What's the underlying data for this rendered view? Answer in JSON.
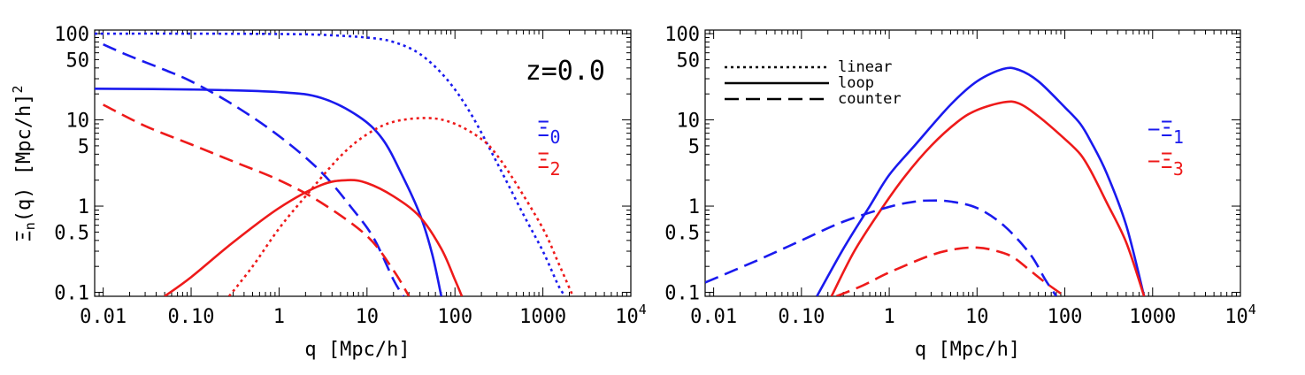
{
  "figure": {
    "ylabel": "Ξn(q) [Mpc/h]²",
    "ylabel_main": "Ξ",
    "ylabel_sub": "n",
    "ylabel_rest": "(q) [Mpc/h]",
    "ylabel_sup": "2"
  },
  "chart_data": [
    {
      "type": "line",
      "xlabel": "q  [Mpc/h]",
      "xscale": "log",
      "yscale": "log",
      "xlim": [
        0.008,
        10000
      ],
      "ylim": [
        0.09,
        110
      ],
      "xticks": [
        {
          "value": 0.01,
          "label": "0.01"
        },
        {
          "value": 0.1,
          "label": "0.10"
        },
        {
          "value": 1,
          "label": "1"
        },
        {
          "value": 10,
          "label": "10"
        },
        {
          "value": 100,
          "label": "100"
        },
        {
          "value": 1000,
          "label": "1000"
        },
        {
          "value": 10000,
          "label": "10",
          "sup": "4"
        }
      ],
      "yticks": [
        {
          "value": 0.1,
          "label": "0.1"
        },
        {
          "value": 0.5,
          "label": "0.5"
        },
        {
          "value": 1,
          "label": "1"
        },
        {
          "value": 5,
          "label": "5"
        },
        {
          "value": 10,
          "label": "10"
        },
        {
          "value": 50,
          "label": "50"
        },
        {
          "value": 100,
          "label": "100"
        }
      ],
      "annotation": "z=0.0",
      "labels": [
        {
          "symbol": "Ξ",
          "sub": "0",
          "prefix": "",
          "color": "#1a1aee"
        },
        {
          "symbol": "Ξ",
          "sub": "2",
          "prefix": "",
          "color": "#ee1a1a"
        }
      ],
      "series": [
        {
          "color": "#1a1aee",
          "style": "dotted",
          "x": [
            0.008,
            0.1,
            1,
            3,
            10,
            20,
            40,
            80,
            150,
            300,
            600,
            1000,
            1500,
            1800
          ],
          "y": [
            100,
            100,
            99,
            97,
            90,
            80,
            58,
            30,
            12,
            3.2,
            0.8,
            0.3,
            0.12,
            0.09
          ]
        },
        {
          "color": "#1a1aee",
          "style": "solid",
          "x": [
            0.008,
            0.1,
            1,
            3,
            8,
            15,
            25,
            40,
            55,
            70
          ],
          "y": [
            23,
            22.5,
            21,
            18,
            11,
            6,
            2.3,
            0.8,
            0.28,
            0.09
          ]
        },
        {
          "color": "#1a1aee",
          "style": "dashed",
          "x": [
            0.01,
            0.02,
            0.05,
            0.1,
            0.3,
            1,
            3,
            7,
            12,
            20,
            26
          ],
          "y": [
            75,
            55,
            38,
            28,
            15,
            6.5,
            2.5,
            0.9,
            0.42,
            0.14,
            0.09
          ]
        },
        {
          "color": "#ee1a1a",
          "style": "dotted",
          "x": [
            0.27,
            0.5,
            1,
            2,
            5,
            10,
            20,
            50,
            100,
            200,
            300,
            500,
            1000,
            1500,
            2200
          ],
          "y": [
            0.09,
            0.2,
            0.55,
            1.3,
            3.8,
            6.8,
            9.5,
            10.5,
            9,
            6,
            3.9,
            1.8,
            0.55,
            0.22,
            0.09
          ]
        },
        {
          "color": "#ee1a1a",
          "style": "solid",
          "x": [
            0.05,
            0.1,
            0.3,
            1,
            3,
            6,
            10,
            20,
            40,
            70,
            100,
            120
          ],
          "y": [
            0.09,
            0.15,
            0.38,
            0.95,
            1.75,
            2.0,
            1.85,
            1.3,
            0.75,
            0.32,
            0.14,
            0.09
          ]
        },
        {
          "color": "#ee1a1a",
          "style": "dashed",
          "x": [
            0.01,
            0.03,
            0.1,
            0.3,
            1,
            3,
            10,
            20,
            30
          ],
          "y": [
            15,
            8.5,
            5.2,
            3.3,
            2,
            1.1,
            0.45,
            0.18,
            0.09
          ]
        }
      ]
    },
    {
      "type": "line",
      "xlabel": "q  [Mpc/h]",
      "xscale": "log",
      "yscale": "log",
      "xlim": [
        0.008,
        10000
      ],
      "ylim": [
        0.09,
        110
      ],
      "xticks": [
        {
          "value": 0.01,
          "label": "0.01"
        },
        {
          "value": 0.1,
          "label": "0.10"
        },
        {
          "value": 1,
          "label": "1"
        },
        {
          "value": 10,
          "label": "10"
        },
        {
          "value": 100,
          "label": "100"
        },
        {
          "value": 1000,
          "label": "1000"
        },
        {
          "value": 10000,
          "label": "10",
          "sup": "4"
        }
      ],
      "yticks": [
        {
          "value": 0.1,
          "label": "0.1"
        },
        {
          "value": 0.5,
          "label": "0.5"
        },
        {
          "value": 1,
          "label": "1"
        },
        {
          "value": 5,
          "label": "5"
        },
        {
          "value": 10,
          "label": "10"
        },
        {
          "value": 50,
          "label": "50"
        },
        {
          "value": 100,
          "label": "100"
        }
      ],
      "legend": [
        {
          "label": "linear",
          "style": "dotted"
        },
        {
          "label": "loop",
          "style": "solid"
        },
        {
          "label": "counter",
          "style": "dashed"
        }
      ],
      "labels": [
        {
          "symbol": "Ξ",
          "sub": "1",
          "prefix": "−",
          "color": "#1a1aee"
        },
        {
          "symbol": "Ξ",
          "sub": "3",
          "prefix": "−",
          "color": "#ee1a1a"
        }
      ],
      "series": [
        {
          "color": "#1a1aee",
          "style": "solid",
          "x": [
            0.15,
            0.3,
            0.6,
            1,
            2,
            5,
            10,
            20,
            30,
            50,
            100,
            150,
            200,
            300,
            500,
            800
          ],
          "y": [
            0.09,
            0.32,
            1.0,
            2.3,
            5.2,
            15,
            28,
            39,
            38,
            28,
            14,
            9,
            5.5,
            2.4,
            0.6,
            0.09
          ]
        },
        {
          "color": "#ee1a1a",
          "style": "solid",
          "x": [
            0.22,
            0.4,
            0.8,
            1.5,
            3,
            6,
            10,
            20,
            30,
            50,
            100,
            150,
            200,
            300,
            500,
            800
          ],
          "y": [
            0.09,
            0.3,
            0.9,
            2.2,
            5,
            9.5,
            13,
            16,
            15.5,
            11,
            6,
            4,
            2.5,
            1.1,
            0.38,
            0.09
          ]
        },
        {
          "color": "#1a1aee",
          "style": "dashed",
          "x": [
            0.008,
            0.03,
            0.1,
            0.3,
            1,
            2,
            3,
            5,
            10,
            20,
            40,
            60,
            80
          ],
          "y": [
            0.13,
            0.23,
            0.4,
            0.66,
            0.98,
            1.13,
            1.16,
            1.13,
            0.95,
            0.6,
            0.28,
            0.14,
            0.09
          ]
        },
        {
          "color": "#ee1a1a",
          "style": "dashed",
          "x": [
            0.25,
            0.5,
            1,
            3,
            6,
            10,
            15,
            25,
            40,
            60,
            100
          ],
          "y": [
            0.09,
            0.12,
            0.17,
            0.27,
            0.32,
            0.33,
            0.31,
            0.26,
            0.18,
            0.13,
            0.09
          ]
        }
      ]
    }
  ]
}
